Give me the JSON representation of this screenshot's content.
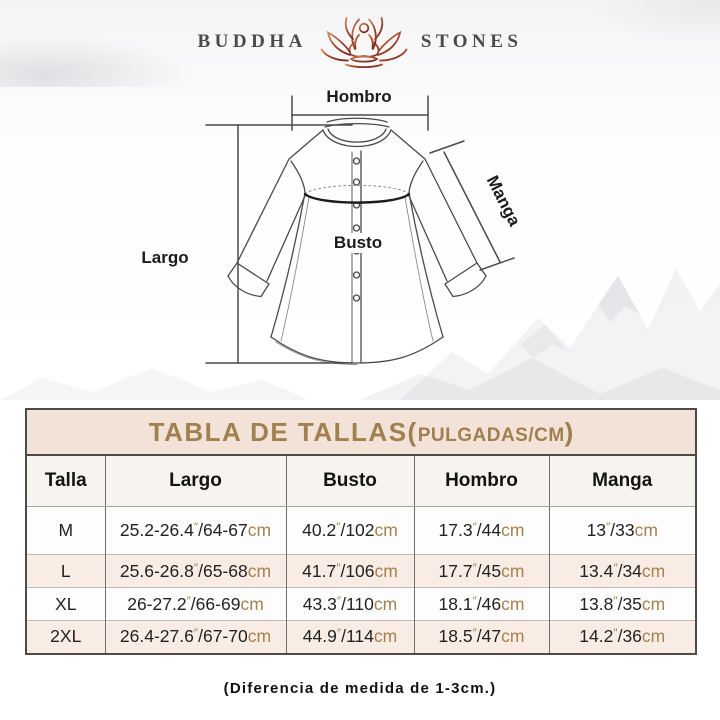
{
  "colors": {
    "gold": "#a5824e",
    "table_title_bg": "#f2e2d7",
    "alt_row_bg": "#f8ece4",
    "title_text": "#a18050",
    "logo_red_light": "#d08b57",
    "logo_red_dark": "#7c2b22"
  },
  "logo": {
    "brand_first": "BUDDHA",
    "brand_second": "STONES"
  },
  "diagram": {
    "shoulder_label": "Hombro",
    "sleeve_label": "Manga",
    "length_label": "Largo",
    "bust_label": "Busto"
  },
  "size_table": {
    "title": {
      "main": "TABLA DE TALLAS(",
      "units": "PULGADAS/CM",
      "close": ")"
    },
    "columns": [
      "Talla",
      "Largo",
      "Busto",
      "Hombro",
      "Manga"
    ],
    "units": {
      "inch_mark": "″",
      "range_separator": "/",
      "cm_label": "cm"
    },
    "measure_keys": [
      "largo",
      "busto",
      "hombro",
      "manga"
    ],
    "rows": [
      {
        "size": "M",
        "largo": {
          "in": "25.2-26.4",
          "cm": "64-67"
        },
        "busto": {
          "in": "40.2",
          "cm": "102"
        },
        "hombro": {
          "in": "17.3",
          "cm": "44"
        },
        "manga": {
          "in": "13",
          "cm": "33"
        }
      },
      {
        "size": "L",
        "largo": {
          "in": "25.6-26.8",
          "cm": "65-68"
        },
        "busto": {
          "in": "41.7",
          "cm": "106"
        },
        "hombro": {
          "in": "17.7",
          "cm": "45"
        },
        "manga": {
          "in": "13.4",
          "cm": "34"
        }
      },
      {
        "size": "XL",
        "largo": {
          "in": "26-27.2",
          "cm": "66-69"
        },
        "busto": {
          "in": "43.3",
          "cm": "110"
        },
        "hombro": {
          "in": "18.1",
          "cm": "46"
        },
        "manga": {
          "in": "13.8",
          "cm": "35"
        }
      },
      {
        "size": "2XL",
        "largo": {
          "in": "26.4-27.6",
          "cm": "67-70"
        },
        "busto": {
          "in": "44.9",
          "cm": "114"
        },
        "hombro": {
          "in": "18.5",
          "cm": "47"
        },
        "manga": {
          "in": "14.2",
          "cm": "36"
        }
      }
    ]
  },
  "footer": {
    "note": "(Diferencia de medida de 1-3cm.)"
  }
}
